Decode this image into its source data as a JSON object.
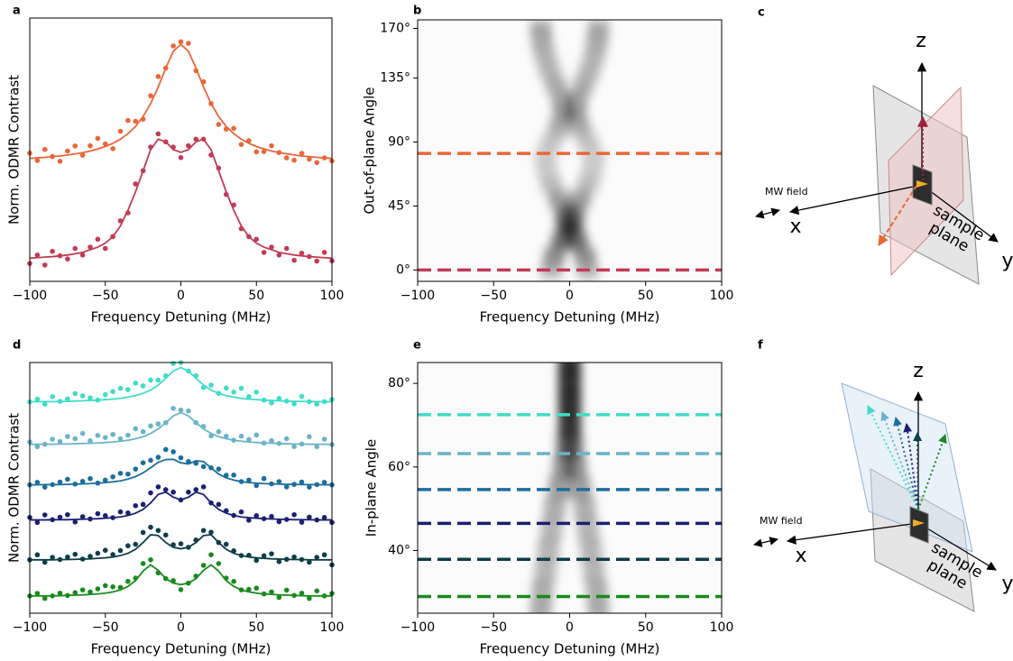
{
  "chart_data": [
    {
      "type": "scatter",
      "panel_label": "a",
      "xlabel": "Frequency Detuning (MHz)",
      "ylabel": "Norm. ODMR Contrast",
      "xlim": [
        -100,
        100
      ],
      "xticks": [
        {
          "value": -100,
          "label": "−100"
        },
        {
          "value": -50,
          "label": "−50"
        },
        0,
        50,
        100
      ],
      "ylim": [
        0,
        1
      ],
      "x": [
        -100,
        -95,
        -90,
        -85,
        -80,
        -75,
        -70,
        -65,
        -60,
        -55,
        -50,
        -45,
        -40,
        -35,
        -30,
        -25,
        -20,
        -15,
        -10,
        -5,
        0,
        5,
        10,
        15,
        20,
        25,
        30,
        35,
        40,
        45,
        50,
        55,
        60,
        65,
        70,
        75,
        80,
        85,
        90,
        95,
        100
      ],
      "series": [
        {
          "color": "#e8673a",
          "values": [
            0.487,
            0.459,
            0.501,
            0.474,
            0.456,
            0.495,
            0.514,
            0.479,
            0.515,
            0.543,
            0.522,
            0.504,
            0.57,
            0.611,
            0.608,
            0.616,
            0.705,
            0.778,
            0.81,
            0.894,
            0.91,
            0.904,
            0.8,
            0.758,
            0.675,
            0.596,
            0.578,
            0.581,
            0.52,
            0.534,
            0.492,
            0.493,
            0.515,
            0.489,
            0.469,
            0.46,
            0.486,
            0.464,
            0.451,
            0.469,
            0.457
          ],
          "fit": [
            0.467,
            0.469,
            0.471,
            0.474,
            0.476,
            0.48,
            0.484,
            0.489,
            0.495,
            0.503,
            0.512,
            0.524,
            0.54,
            0.561,
            0.588,
            0.626,
            0.675,
            0.738,
            0.81,
            0.874,
            0.9,
            0.874,
            0.81,
            0.738,
            0.675,
            0.626,
            0.588,
            0.561,
            0.54,
            0.524,
            0.512,
            0.503,
            0.495,
            0.489,
            0.484,
            0.48,
            0.476,
            0.474,
            0.471,
            0.469,
            0.467
          ]
        },
        {
          "color": "#c23b55",
          "values": [
            0.068,
            0.1,
            0.062,
            0.114,
            0.097,
            0.085,
            0.125,
            0.1,
            0.13,
            0.16,
            0.125,
            0.17,
            0.23,
            0.26,
            0.37,
            0.42,
            0.51,
            0.56,
            0.53,
            0.51,
            0.47,
            0.515,
            0.54,
            0.54,
            0.48,
            0.43,
            0.33,
            0.29,
            0.2,
            0.17,
            0.16,
            0.11,
            0.13,
            0.1,
            0.125,
            0.08,
            0.107,
            0.094,
            0.077,
            0.11,
            0.078
          ],
          "fit": [
            0.088,
            0.09,
            0.092,
            0.094,
            0.097,
            0.1,
            0.105,
            0.11,
            0.12,
            0.13,
            0.145,
            0.17,
            0.21,
            0.27,
            0.34,
            0.42,
            0.5,
            0.54,
            0.53,
            0.5,
            0.49,
            0.5,
            0.53,
            0.54,
            0.5,
            0.42,
            0.34,
            0.27,
            0.21,
            0.17,
            0.145,
            0.13,
            0.12,
            0.11,
            0.105,
            0.1,
            0.097,
            0.094,
            0.092,
            0.09,
            0.088
          ]
        }
      ]
    },
    {
      "type": "heatmap",
      "panel_label": "b",
      "xlabel": "Frequency Detuning (MHz)",
      "ylabel": "Out-of-plane Angle",
      "xlim": [
        -100,
        100
      ],
      "xticks": [
        {
          "value": -100,
          "label": "−100"
        },
        {
          "value": -50,
          "label": "−50"
        },
        0,
        50,
        100
      ],
      "ylim": [
        -8,
        176
      ],
      "yticks": [
        {
          "value": 0,
          "label": "0°"
        },
        {
          "value": 45,
          "label": "45°"
        },
        {
          "value": 90,
          "label": "90°"
        },
        {
          "value": 135,
          "label": "135°"
        },
        {
          "value": 170,
          "label": "170°"
        }
      ],
      "angles": [
        0,
        10,
        20,
        30,
        40,
        50,
        60,
        70,
        80,
        90,
        100,
        110,
        120,
        130,
        140,
        150,
        160,
        170
      ],
      "splitting": [
        24,
        20,
        10,
        4,
        6,
        14,
        24,
        30,
        32,
        24,
        14,
        8,
        10,
        18,
        26,
        32,
        36,
        38
      ],
      "contrast": [
        0.5,
        0.7,
        0.9,
        0.95,
        0.8,
        0.6,
        0.4,
        0.3,
        0.3,
        0.35,
        0.5,
        0.6,
        0.55,
        0.5,
        0.45,
        0.45,
        0.5,
        0.55
      ],
      "hlines": [
        {
          "value": 82,
          "color": "#e8673a"
        },
        {
          "value": 0,
          "color": "#c23b55"
        }
      ]
    },
    {
      "type": "scatter",
      "panel_label": "d",
      "xlabel": "Frequency Detuning (MHz)",
      "ylabel": "Norm. ODMR Contrast",
      "xlim": [
        -100,
        100
      ],
      "xticks": [
        {
          "value": -100,
          "label": "−100"
        },
        {
          "value": -50,
          "label": "−50"
        },
        0,
        50,
        100
      ],
      "ylim": [
        0,
        1
      ],
      "x": [
        -100,
        -95,
        -90,
        -85,
        -80,
        -75,
        -70,
        -65,
        -60,
        -55,
        -50,
        -45,
        -40,
        -35,
        -30,
        -25,
        -20,
        -15,
        -10,
        -5,
        0,
        5,
        10,
        15,
        20,
        25,
        30,
        35,
        40,
        45,
        50,
        55,
        60,
        65,
        70,
        75,
        80,
        85,
        90,
        95,
        100
      ],
      "series": [
        {
          "color": "#40dcc8",
          "values": [
            0.843,
            0.854,
            0.834,
            0.864,
            0.845,
            0.855,
            0.876,
            0.867,
            0.859,
            0.85,
            0.872,
            0.884,
            0.897,
            0.892,
            0.918,
            0.907,
            0.93,
            0.93,
            0.947,
            0.996,
            1.0,
            0.966,
            0.947,
            0.9,
            0.91,
            0.877,
            0.898,
            0.882,
            0.897,
            0.864,
            0.882,
            0.85,
            0.839,
            0.857,
            0.846,
            0.835,
            0.865,
            0.844,
            0.834,
            0.844,
            0.853
          ],
          "fit": [
            0.843,
            0.844,
            0.844,
            0.844,
            0.845,
            0.845,
            0.846,
            0.847,
            0.849,
            0.85,
            0.852,
            0.854,
            0.857,
            0.862,
            0.868,
            0.877,
            0.89,
            0.91,
            0.937,
            0.966,
            0.98,
            0.966,
            0.937,
            0.91,
            0.89,
            0.877,
            0.868,
            0.862,
            0.857,
            0.854,
            0.852,
            0.85,
            0.849,
            0.847,
            0.846,
            0.845,
            0.845,
            0.844,
            0.844,
            0.844,
            0.843
          ]
        },
        {
          "color": "#6ab4c8",
          "values": [
            0.683,
            0.664,
            0.674,
            0.694,
            0.685,
            0.705,
            0.696,
            0.717,
            0.688,
            0.709,
            0.701,
            0.713,
            0.696,
            0.71,
            0.736,
            0.724,
            0.747,
            0.755,
            0.76,
            0.817,
            0.81,
            0.807,
            0.76,
            0.745,
            0.707,
            0.724,
            0.706,
            0.69,
            0.706,
            0.693,
            0.711,
            0.679,
            0.688,
            0.677,
            0.696,
            0.665,
            0.675,
            0.704,
            0.664,
            0.694,
            0.673
          ],
          "fit": [
            0.673,
            0.674,
            0.674,
            0.674,
            0.675,
            0.675,
            0.676,
            0.677,
            0.678,
            0.679,
            0.681,
            0.683,
            0.686,
            0.69,
            0.696,
            0.704,
            0.717,
            0.735,
            0.76,
            0.787,
            0.8,
            0.787,
            0.76,
            0.735,
            0.717,
            0.704,
            0.696,
            0.69,
            0.686,
            0.683,
            0.681,
            0.679,
            0.678,
            0.677,
            0.676,
            0.675,
            0.675,
            0.674,
            0.674,
            0.674,
            0.673
          ]
        },
        {
          "color": "#1c6e9c",
          "values": [
            0.512,
            0.522,
            0.503,
            0.513,
            0.523,
            0.534,
            0.515,
            0.526,
            0.537,
            0.519,
            0.531,
            0.544,
            0.558,
            0.555,
            0.575,
            0.6,
            0.61,
            0.622,
            0.653,
            0.644,
            0.62,
            0.605,
            0.598,
            0.585,
            0.58,
            0.575,
            0.55,
            0.551,
            0.525,
            0.531,
            0.509,
            0.537,
            0.516,
            0.525,
            0.504,
            0.514,
            0.523,
            0.503,
            0.513,
            0.522,
            0.512
          ],
          "fit": [
            0.512,
            0.512,
            0.513,
            0.513,
            0.513,
            0.514,
            0.515,
            0.516,
            0.517,
            0.519,
            0.521,
            0.524,
            0.528,
            0.535,
            0.545,
            0.56,
            0.58,
            0.602,
            0.613,
            0.614,
            0.6,
            0.595,
            0.608,
            0.605,
            0.58,
            0.555,
            0.54,
            0.531,
            0.525,
            0.521,
            0.519,
            0.517,
            0.516,
            0.515,
            0.514,
            0.514,
            0.513,
            0.513,
            0.513,
            0.512,
            0.512
          ]
        },
        {
          "color": "#1b2170",
          "values": [
            0.382,
            0.362,
            0.392,
            0.373,
            0.383,
            0.393,
            0.364,
            0.385,
            0.376,
            0.397,
            0.389,
            0.381,
            0.404,
            0.4,
            0.429,
            0.434,
            0.48,
            0.504,
            0.493,
            0.483,
            0.452,
            0.483,
            0.493,
            0.504,
            0.44,
            0.434,
            0.409,
            0.39,
            0.404,
            0.371,
            0.389,
            0.377,
            0.386,
            0.365,
            0.374,
            0.393,
            0.363,
            0.383,
            0.372,
            0.382,
            0.362
          ],
          "fit": [
            0.372,
            0.372,
            0.372,
            0.373,
            0.373,
            0.373,
            0.374,
            0.375,
            0.376,
            0.377,
            0.379,
            0.381,
            0.384,
            0.39,
            0.399,
            0.414,
            0.44,
            0.474,
            0.483,
            0.463,
            0.452,
            0.463,
            0.483,
            0.474,
            0.44,
            0.414,
            0.399,
            0.39,
            0.384,
            0.381,
            0.379,
            0.377,
            0.376,
            0.375,
            0.374,
            0.373,
            0.373,
            0.373,
            0.372,
            0.372,
            0.372
          ]
        },
        {
          "color": "#0e3e4a",
          "values": [
            0.213,
            0.233,
            0.203,
            0.223,
            0.214,
            0.224,
            0.235,
            0.216,
            0.227,
            0.239,
            0.251,
            0.234,
            0.25,
            0.269,
            0.275,
            0.322,
            0.343,
            0.33,
            0.312,
            0.273,
            0.277,
            0.263,
            0.292,
            0.33,
            0.323,
            0.282,
            0.275,
            0.249,
            0.23,
            0.231,
            0.211,
            0.229,
            0.237,
            0.206,
            0.215,
            0.224,
            0.214,
            0.203,
            0.223,
            0.233,
            0.193
          ],
          "fit": [
            0.213,
            0.213,
            0.213,
            0.213,
            0.214,
            0.214,
            0.215,
            0.216,
            0.217,
            0.219,
            0.221,
            0.224,
            0.23,
            0.239,
            0.255,
            0.282,
            0.313,
            0.31,
            0.282,
            0.263,
            0.257,
            0.263,
            0.282,
            0.31,
            0.313,
            0.282,
            0.255,
            0.239,
            0.23,
            0.224,
            0.221,
            0.219,
            0.217,
            0.216,
            0.215,
            0.214,
            0.214,
            0.213,
            0.213,
            0.213,
            0.213
          ]
        },
        {
          "color": "#1a8a1e",
          "values": [
            0.069,
            0.079,
            0.059,
            0.069,
            0.08,
            0.071,
            0.082,
            0.093,
            0.085,
            0.097,
            0.11,
            0.105,
            0.103,
            0.127,
            0.14,
            0.198,
            0.213,
            0.161,
            0.138,
            0.13,
            0.094,
            0.12,
            0.148,
            0.191,
            0.233,
            0.198,
            0.14,
            0.127,
            0.093,
            0.095,
            0.1,
            0.077,
            0.085,
            0.063,
            0.092,
            0.071,
            0.08,
            0.059,
            0.089,
            0.069,
            0.079
          ],
          "fit": [
            0.069,
            0.069,
            0.069,
            0.069,
            0.07,
            0.071,
            0.072,
            0.073,
            0.075,
            0.077,
            0.08,
            0.085,
            0.093,
            0.107,
            0.13,
            0.168,
            0.193,
            0.171,
            0.138,
            0.12,
            0.114,
            0.12,
            0.138,
            0.171,
            0.193,
            0.168,
            0.13,
            0.107,
            0.093,
            0.085,
            0.08,
            0.077,
            0.075,
            0.073,
            0.072,
            0.071,
            0.07,
            0.069,
            0.069,
            0.069,
            0.069
          ]
        }
      ]
    },
    {
      "type": "heatmap",
      "panel_label": "e",
      "xlabel": "Frequency Detuning (MHz)",
      "ylabel": "In-plane Angle",
      "xlim": [
        -100,
        100
      ],
      "xticks": [
        {
          "value": -100,
          "label": "−100"
        },
        {
          "value": -50,
          "label": "−50"
        },
        0,
        50,
        100
      ],
      "ylim": [
        25,
        85
      ],
      "yticks": [
        {
          "value": 40,
          "label": "40°"
        },
        {
          "value": 60,
          "label": "60°"
        },
        {
          "value": 80,
          "label": "80°"
        }
      ],
      "angles": [
        25,
        30,
        35,
        40,
        45,
        50,
        55,
        60,
        65,
        70,
        75,
        80,
        85
      ],
      "splitting": [
        38,
        36,
        32,
        28,
        24,
        20,
        14,
        8,
        4,
        2,
        2,
        2,
        2
      ],
      "contrast": [
        0.5,
        0.5,
        0.45,
        0.45,
        0.45,
        0.5,
        0.6,
        0.7,
        0.8,
        0.9,
        0.95,
        0.95,
        0.95
      ],
      "hlines": [
        {
          "value": 72.5,
          "color": "#40dcc8"
        },
        {
          "value": 63.2,
          "color": "#6ab4c8"
        },
        {
          "value": 54.6,
          "color": "#1c6e9c"
        },
        {
          "value": 46.5,
          "color": "#1b2170"
        },
        {
          "value": 37.9,
          "color": "#0e3e4a"
        },
        {
          "value": 29,
          "color": "#1a8a1e"
        }
      ]
    }
  ],
  "diagrams": [
    {
      "panel_label": "c",
      "z": "z",
      "x": "x",
      "y": "y",
      "mw_label": "MW field",
      "plane_label": [
        "sample",
        "plane"
      ]
    },
    {
      "panel_label": "f",
      "z": "z",
      "x": "x",
      "y": "y",
      "mw_label": "MW field",
      "plane_label": [
        "sample",
        "plane"
      ]
    }
  ]
}
